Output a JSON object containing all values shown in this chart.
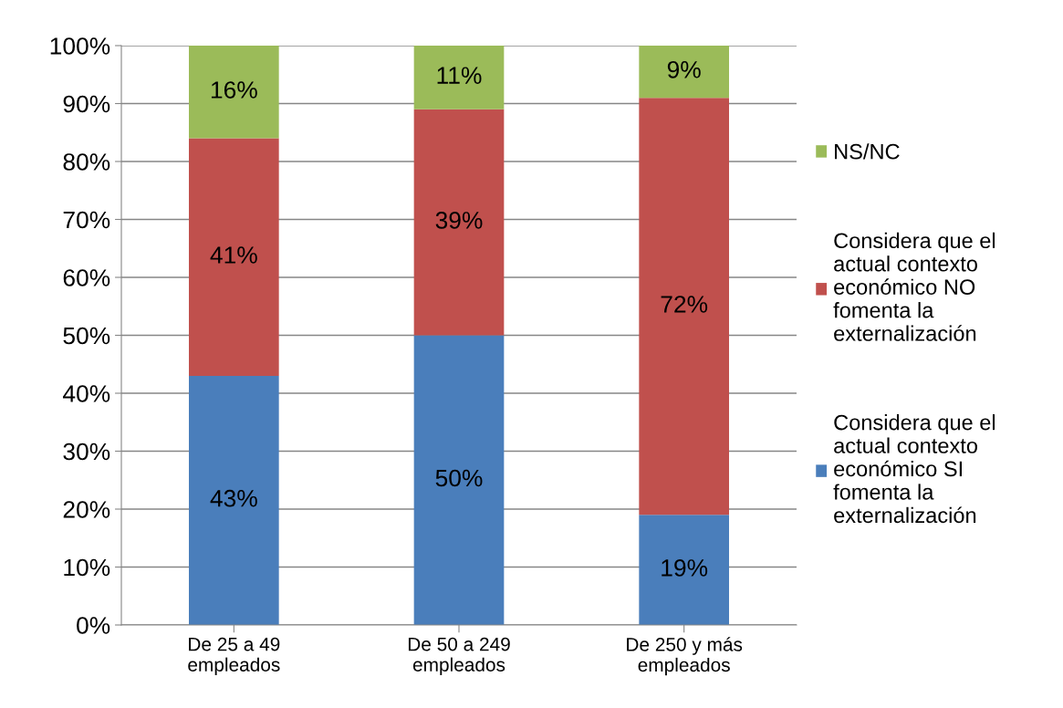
{
  "chart_data": {
    "type": "bar",
    "stacked": true,
    "categories": [
      "De 25 a 49\nempleados",
      "De 50 a 249\nempleados",
      "De 250 y más\nempleados"
    ],
    "series": [
      {
        "name": "Considera que el\nactual contexto\neconómico SI\nfomenta la\nexternalización",
        "color": "#4a7ebb",
        "values": [
          43,
          50,
          19
        ],
        "value_labels": [
          "43%",
          "50%",
          "19%"
        ]
      },
      {
        "name": "Considera que el\nactual contexto\neconómico NO\nfomenta la\nexternalización",
        "color": "#c0504d",
        "values": [
          41,
          39,
          72
        ],
        "value_labels": [
          "41%",
          "39%",
          "72%"
        ]
      },
      {
        "name": "NS/NC",
        "color": "#9bbb59",
        "values": [
          16,
          11,
          9
        ],
        "value_labels": [
          "16%",
          "11%",
          "9%"
        ]
      }
    ],
    "ylim": [
      0,
      100
    ],
    "yticks": [
      {
        "value": 0,
        "label": "0%"
      },
      {
        "value": 10,
        "label": "10%"
      },
      {
        "value": 20,
        "label": "20%"
      },
      {
        "value": 30,
        "label": "30%"
      },
      {
        "value": 40,
        "label": "40%"
      },
      {
        "value": 50,
        "label": "50%"
      },
      {
        "value": 60,
        "label": "60%"
      },
      {
        "value": 70,
        "label": "70%"
      },
      {
        "value": 80,
        "label": "80%"
      },
      {
        "value": 90,
        "label": "90%"
      },
      {
        "value": 100,
        "label": "100%"
      }
    ],
    "grid": "y",
    "legend": "right"
  }
}
